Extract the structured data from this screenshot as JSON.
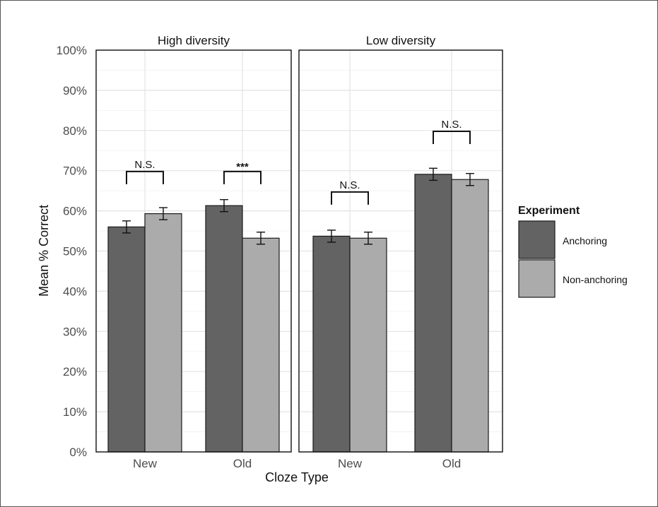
{
  "chart_data": {
    "type": "bar",
    "xlabel": "Cloze Type",
    "ylabel": "Mean % Correct",
    "ylim": [
      0,
      100
    ],
    "yticks": [
      "0%",
      "10%",
      "20%",
      "30%",
      "40%",
      "50%",
      "60%",
      "70%",
      "80%",
      "90%",
      "100%"
    ],
    "categories": [
      "New",
      "Old"
    ],
    "grid": true,
    "legend": {
      "title": "Experiment",
      "placement": "right",
      "entries": [
        {
          "name": "Anchoring",
          "color": "#636363"
        },
        {
          "name": "Non-anchoring",
          "color": "#ababab"
        }
      ]
    },
    "panels": [
      {
        "title": "High diversity",
        "series": [
          {
            "name": "Anchoring",
            "values": [
              56,
              61.3
            ],
            "errors": [
              1.5,
              1.5
            ]
          },
          {
            "name": "Non-anchoring",
            "values": [
              59.3,
              53.2
            ],
            "errors": [
              1.5,
              1.5
            ]
          }
        ],
        "significance": [
          "N.S.",
          "***"
        ],
        "bracket_level": [
          69.8,
          69.8
        ]
      },
      {
        "title": "Low diversity",
        "series": [
          {
            "name": "Anchoring",
            "values": [
              53.7,
              69.1
            ],
            "errors": [
              1.5,
              1.5
            ]
          },
          {
            "name": "Non-anchoring",
            "values": [
              53.2,
              67.8
            ],
            "errors": [
              1.5,
              1.5
            ]
          }
        ],
        "significance": [
          "N.S.",
          "N.S."
        ],
        "bracket_level": [
          64.7,
          79.8
        ]
      }
    ]
  }
}
